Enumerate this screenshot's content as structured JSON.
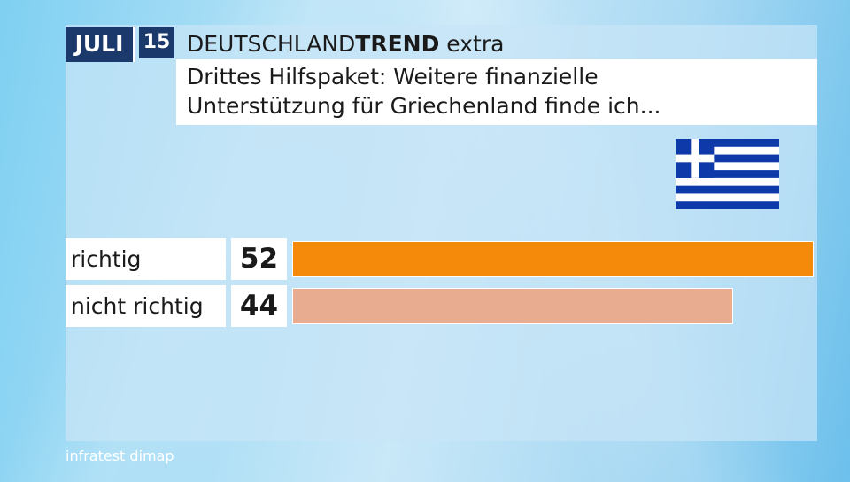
{
  "header": {
    "month": "JULI",
    "day": "15",
    "brand_regular": "DEUTSCHLAND",
    "brand_bold": "TREND",
    "brand_suffix": " extra",
    "question_line1": "Drittes Hilfspaket: Weitere finanzielle",
    "question_line2": "Unterstützung für Griechenland finde ich..."
  },
  "flag": {
    "icon": "greece-flag-icon",
    "blue": "#0d3aa8",
    "white": "#ffffff"
  },
  "colors": {
    "header_badge": "#1b3a6b",
    "bar_primary": "#f58a0a",
    "bar_secondary": "#e8ac90"
  },
  "chart_data": {
    "type": "bar",
    "orientation": "horizontal",
    "categories": [
      "richtig",
      "nicht richtig"
    ],
    "values": [
      52,
      44
    ],
    "value_labels": [
      "52",
      "44"
    ],
    "bar_colors": [
      "#f58a0a",
      "#e8ac90"
    ],
    "xlim": [
      0,
      52
    ]
  },
  "footer": {
    "source": "infratest dimap"
  }
}
